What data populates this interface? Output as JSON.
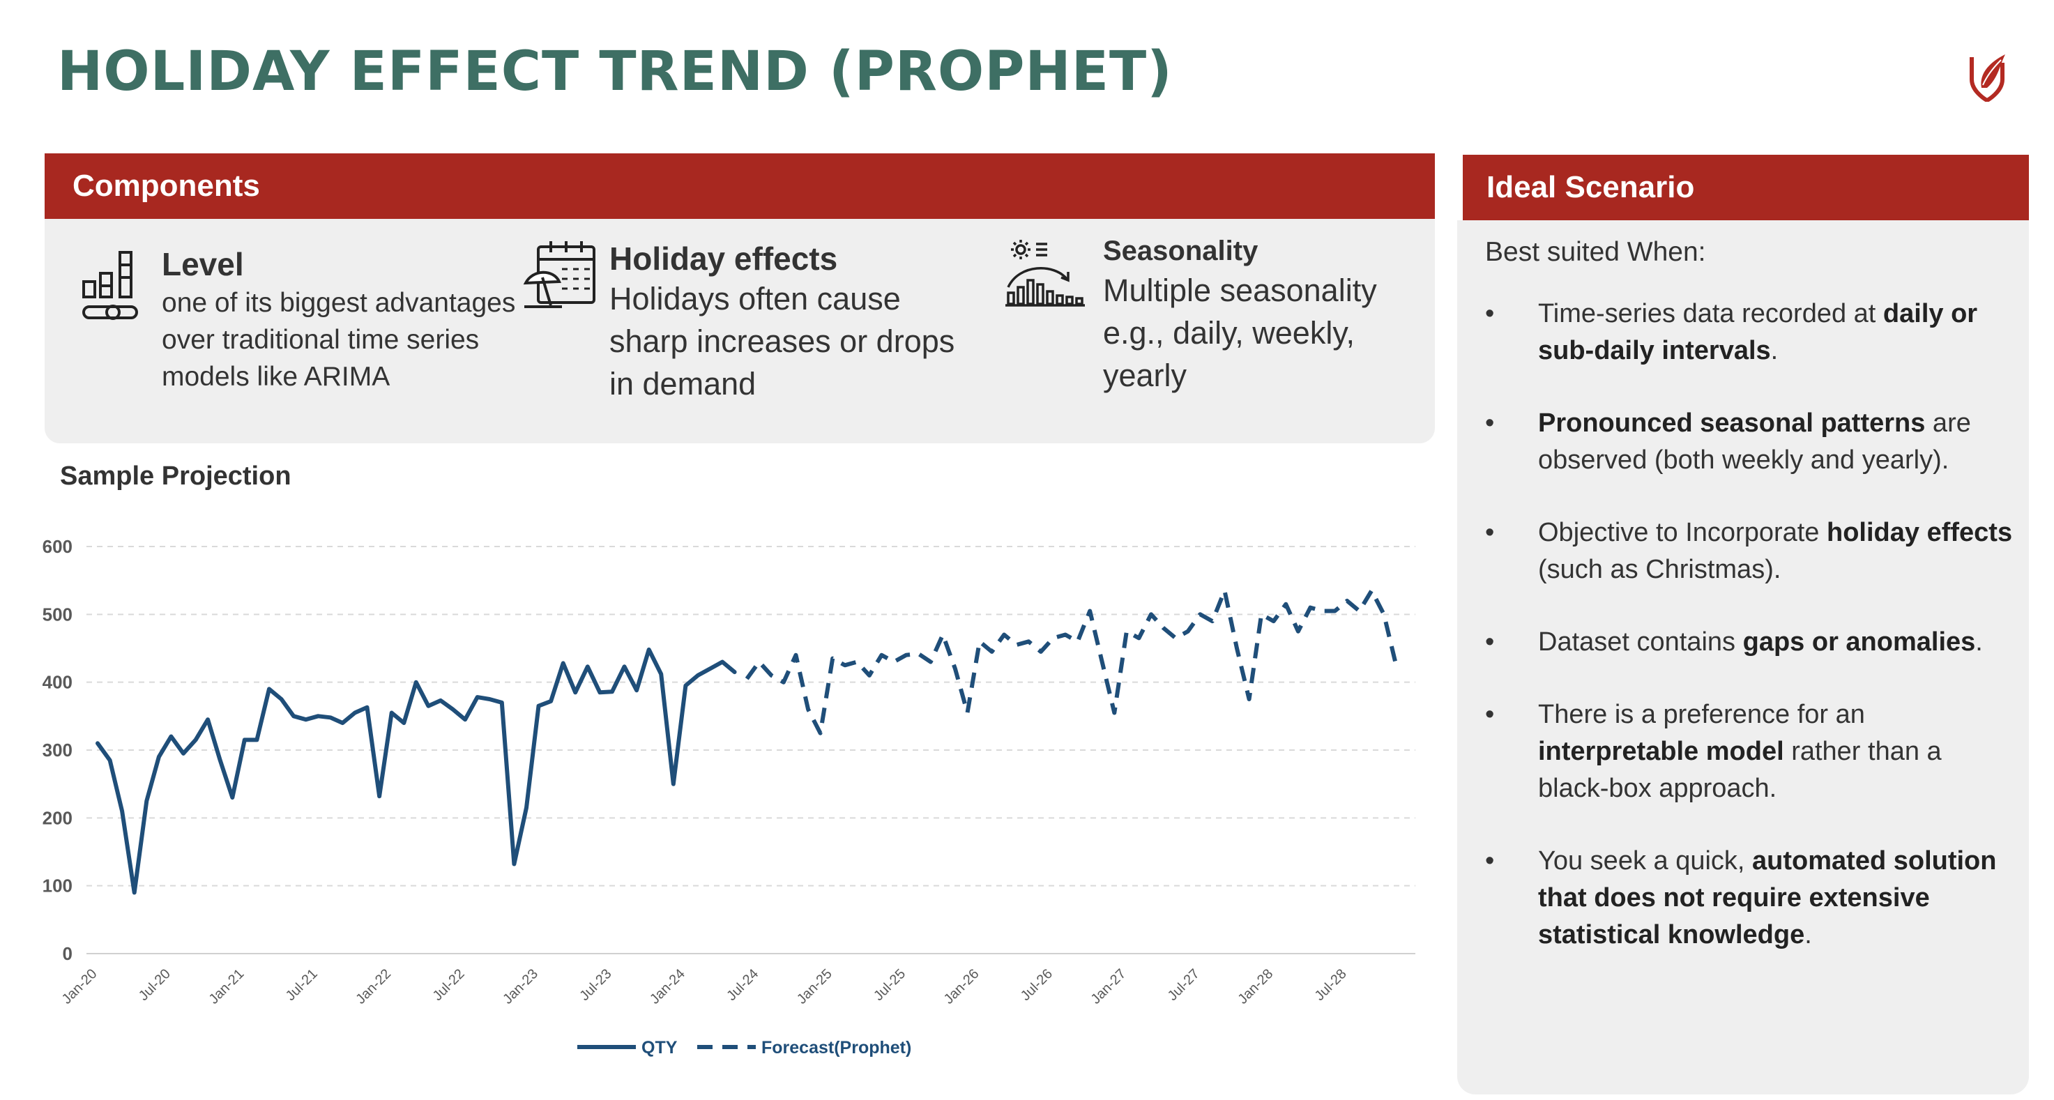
{
  "title": "HOLIDAY EFFECT TREND (PROPHET)",
  "colors": {
    "title": "#3e6f64",
    "header": "#a82820",
    "panel": "#efefef",
    "series": "#1f4e79"
  },
  "components": {
    "header": "Components",
    "items": [
      {
        "icon": "bar-chart-icon",
        "heading": "Level",
        "desc": "one of its biggest advantages over traditional time series models like ARIMA"
      },
      {
        "icon": "calendar-beach-icon",
        "heading": "Holiday effects",
        "desc": "Holidays often cause sharp increases or drops in demand"
      },
      {
        "icon": "seasonality-icon",
        "heading": "Seasonality",
        "desc": "Multiple seasonality e.g., daily, weekly, yearly"
      }
    ]
  },
  "sample": {
    "title": "Sample Projection"
  },
  "ideal": {
    "header": "Ideal Scenario",
    "intro": "Best suited When:",
    "bullet_char": "•",
    "bullets": [
      {
        "pre": "Time-series data recorded at ",
        "bold": "daily or sub-daily intervals",
        "post": "."
      },
      {
        "pre": "",
        "bold": "Pronounced seasonal patterns",
        "post": " are observed (both weekly and yearly)."
      },
      {
        "pre": "Objective to Incorporate ",
        "bold": "holiday effects",
        "post": " (such as Christmas)."
      },
      {
        "pre": "Dataset contains ",
        "bold": "gaps or anomalies",
        "post": "."
      },
      {
        "pre": "There is a preference for an ",
        "bold": "interpretable model",
        "post": " rather than a black-box approach."
      },
      {
        "pre": "You seek a quick, ",
        "bold": "automated solution that does not require extensive statistical knowledge",
        "post": "."
      }
    ]
  },
  "chart_data": {
    "type": "line",
    "title": "",
    "xlabel": "",
    "ylabel": "",
    "ylim": [
      0,
      600
    ],
    "yticks": [
      0,
      100,
      200,
      300,
      400,
      500,
      600
    ],
    "grid": true,
    "legend": "bottom",
    "x_tick_labels": [
      "Jan-20",
      "Jul-20",
      "Jan-21",
      "Jul-21",
      "Jan-22",
      "Jul-22",
      "Jan-23",
      "Jul-23",
      "Jan-24",
      "Jul-24",
      "Jan-25",
      "Jul-25",
      "Jan-26",
      "Jul-26",
      "Jan-27",
      "Jul-27",
      "Jan-28",
      "Jul-28"
    ],
    "series": [
      {
        "name": "QTY",
        "style": "solid",
        "start_month": "Jan-20",
        "values": [
          310,
          285,
          210,
          90,
          225,
          290,
          320,
          295,
          315,
          345,
          285,
          230,
          315,
          315,
          390,
          375,
          350,
          345,
          350,
          348,
          340,
          355,
          363,
          232,
          355,
          340,
          400,
          365,
          373,
          360,
          345,
          378,
          375,
          370,
          132,
          215,
          365,
          372,
          428,
          385,
          423,
          385,
          386,
          423,
          388,
          448,
          412,
          250,
          395,
          410,
          420,
          430,
          415
        ]
      },
      {
        "name": "Forecast(Prophet)",
        "style": "dashed",
        "start_month": "Jun-24",
        "values": [
          405,
          430,
          410,
          400,
          440,
          360,
          325,
          435,
          425,
          430,
          410,
          440,
          430,
          440,
          442,
          430,
          470,
          420,
          355,
          460,
          445,
          470,
          455,
          460,
          445,
          465,
          470,
          460,
          505,
          430,
          355,
          475,
          465,
          500,
          480,
          465,
          475,
          500,
          490,
          535,
          450,
          375,
          500,
          490,
          515,
          475,
          510,
          505,
          505,
          520,
          505,
          535,
          500,
          425
        ]
      }
    ]
  }
}
